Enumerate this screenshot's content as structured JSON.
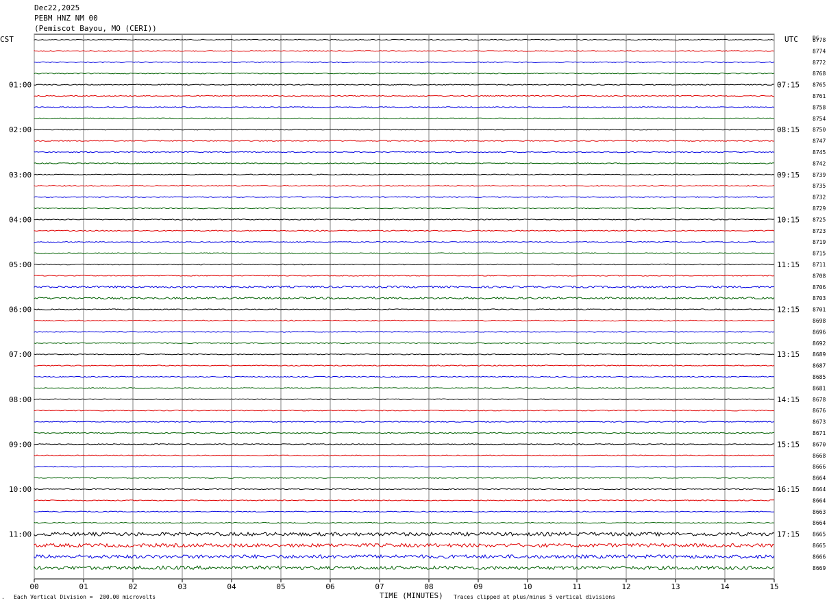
{
  "header": {
    "date": "Dec22,2025",
    "station": "PEBM HNZ NM 00",
    "location": "(Pemiscot Bayou, MO (CERI))"
  },
  "left_tz": "CST",
  "right_tz": "UTC",
  "dc_label": "DC",
  "footer": {
    "scale": "Each Vertical Division =  200.00 microvolts",
    "xlabel": "TIME (MINUTES)",
    "clip": "Traces clipped at plus/minus 5 vertical divisions"
  },
  "colors": {
    "trace_cycle": [
      "#000000",
      "#e00000",
      "#0000e0",
      "#006000"
    ],
    "grid": "#808080"
  },
  "chart_data": {
    "type": "line",
    "x_ticks": [
      "00",
      "01",
      "02",
      "03",
      "04",
      "05",
      "06",
      "07",
      "08",
      "09",
      "10",
      "11",
      "12",
      "13",
      "14",
      "15"
    ],
    "xlim": [
      0,
      15
    ],
    "left_hour_labels": [
      "01:00",
      "02:00",
      "03:00",
      "04:00",
      "05:00",
      "06:00",
      "07:00",
      "08:00",
      "09:00",
      "10:00",
      "11:00"
    ],
    "right_hour_labels": [
      "07:15",
      "08:15",
      "09:15",
      "10:15",
      "11:15",
      "12:15",
      "13:15",
      "14:15",
      "15:15",
      "16:15",
      "17:15"
    ],
    "dc_offsets": [
      "8778",
      "8774",
      "8772",
      "8768",
      "8765",
      "8761",
      "8758",
      "8754",
      "8750",
      "8747",
      "8745",
      "8742",
      "8739",
      "8735",
      "8732",
      "8729",
      "8725",
      "8723",
      "8719",
      "8715",
      "8711",
      "8708",
      "8706",
      "8703",
      "8701",
      "8698",
      "8696",
      "8692",
      "8689",
      "8687",
      "8685",
      "8681",
      "8678",
      "8676",
      "8673",
      "8671",
      "8670",
      "8668",
      "8666",
      "8664",
      "8664",
      "8664",
      "8663",
      "8664",
      "8665",
      "8665",
      "8666",
      "8669"
    ],
    "trace_count": 48
  }
}
